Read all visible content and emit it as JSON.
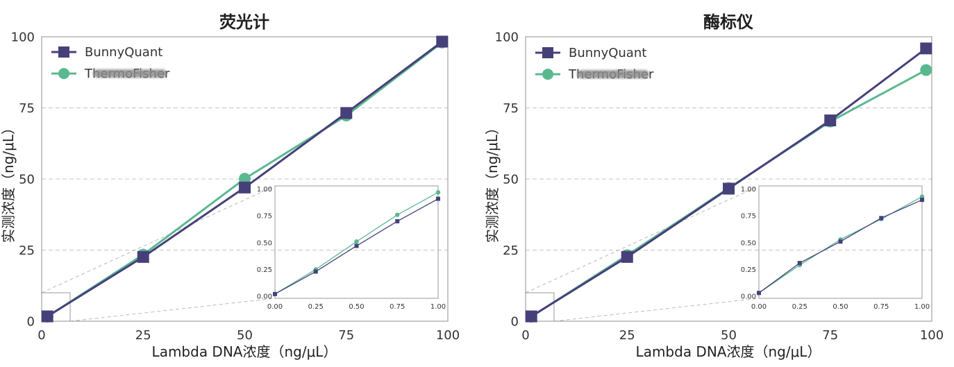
{
  "chart_data": [
    {
      "type": "line",
      "title": "荧光计",
      "xlabel": "Lambda DNA浓度（ng/μL）",
      "ylabel": "实测浓度（ng/μL）",
      "xlim": [
        0,
        100
      ],
      "ylim": [
        0,
        100
      ],
      "xticks": [
        0,
        25,
        50,
        75,
        100
      ],
      "xtick_labels": [
        "0",
        "25",
        "50",
        "75",
        "100"
      ],
      "yticks": [
        0,
        25,
        50,
        75,
        100
      ],
      "ytick_labels": [
        "0",
        "25",
        "50",
        "75",
        "100"
      ],
      "grid_y": true,
      "legend": {
        "position": "top-left"
      },
      "x": [
        1.4,
        25,
        50,
        75,
        98.6
      ],
      "series": [
        {
          "name": "BunnyQuant",
          "color": "#46407a",
          "marker": "square",
          "y": [
            1.7,
            22.6,
            47.0,
            73.2,
            98.3
          ]
        },
        {
          "name": "ThermoFisher",
          "color": "#5ab890",
          "marker": "circle",
          "y": [
            1.6,
            23.4,
            50.1,
            72.3,
            98.0
          ]
        }
      ],
      "inset": {
        "xlim": [
          0,
          1
        ],
        "ylim": [
          -0.02,
          1.03
        ],
        "xticks": [
          0,
          0.25,
          0.5,
          0.75,
          1
        ],
        "xtick_labels": [
          "0.00",
          "0.25",
          "0.50",
          "0.75",
          "1.00"
        ],
        "yticks": [
          0,
          0.25,
          0.5,
          0.75,
          1
        ],
        "ytick_labels": [
          "0.00",
          "0.25",
          "0.50",
          "0.75",
          "1.00"
        ],
        "x": [
          0,
          0.25,
          0.5,
          0.75,
          1
        ],
        "series": [
          {
            "y": [
              0.02,
              0.23,
              0.47,
              0.7,
              0.91
            ]
          },
          {
            "y": [
              0.02,
              0.25,
              0.51,
              0.76,
              0.97
            ]
          }
        ],
        "zoom_region": {
          "xlim": [
            0,
            7
          ],
          "ylim": [
            0,
            10
          ]
        }
      }
    },
    {
      "type": "line",
      "title": "酶标仪",
      "xlabel": "Lambda DNA浓度（ng/μL）",
      "ylabel": "实测浓度（ng/μL）",
      "xlim": [
        0,
        100
      ],
      "ylim": [
        0,
        100
      ],
      "xticks": [
        0,
        25,
        50,
        75,
        100
      ],
      "xtick_labels": [
        "0",
        "25",
        "50",
        "75",
        "100"
      ],
      "yticks": [
        0,
        25,
        50,
        75,
        100
      ],
      "ytick_labels": [
        "0",
        "25",
        "50",
        "75",
        "100"
      ],
      "grid_y": true,
      "legend": {
        "position": "top-left"
      },
      "x": [
        1.4,
        25,
        50,
        75,
        98.6
      ],
      "series": [
        {
          "name": "BunnyQuant",
          "color": "#46407a",
          "marker": "square",
          "y": [
            1.7,
            22.6,
            46.6,
            70.6,
            95.9
          ]
        },
        {
          "name": "ThermoFisher",
          "color": "#5ab890",
          "marker": "circle",
          "y": [
            1.6,
            23.2,
            46.8,
            70.2,
            88.3
          ]
        }
      ],
      "inset": {
        "xlim": [
          0,
          1
        ],
        "ylim": [
          -0.02,
          1.03
        ],
        "xticks": [
          0,
          0.25,
          0.5,
          0.75,
          1
        ],
        "xtick_labels": [
          "0.00",
          "0.25",
          "0.50",
          "0.75",
          "1.00"
        ],
        "yticks": [
          0,
          0.25,
          0.5,
          0.75,
          1
        ],
        "ytick_labels": [
          "0.00",
          "0.25",
          "0.50",
          "0.75",
          "1.00"
        ],
        "x": [
          0,
          0.25,
          0.5,
          0.75,
          1
        ],
        "series": [
          {
            "y": [
              0.03,
              0.31,
              0.51,
              0.73,
              0.9
            ]
          },
          {
            "y": [
              0.03,
              0.29,
              0.53,
              0.72,
              0.93
            ]
          }
        ],
        "zoom_region": {
          "xlim": [
            0,
            7
          ],
          "ylim": [
            0,
            10
          ]
        }
      }
    }
  ]
}
